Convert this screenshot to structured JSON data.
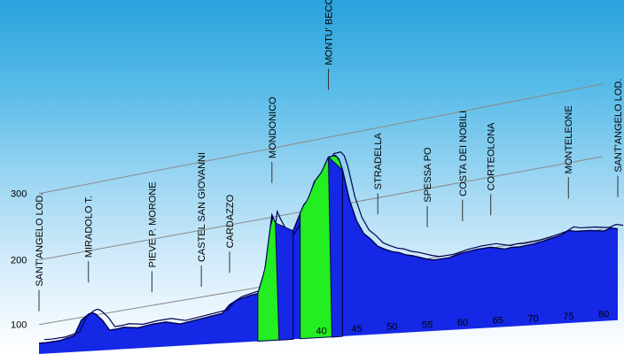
{
  "colors": {
    "profile_fill": "#1428e6",
    "profile_stroke": "#000050",
    "climb_fill": "#22ee22",
    "grid_line": "#8a8a8a",
    "marker_line": "#333333"
  },
  "chart_data": {
    "type": "area",
    "title": "",
    "xlabel": "",
    "ylabel": "",
    "ylim": [
      0,
      330
    ],
    "y_ticks": [
      100,
      200,
      300
    ],
    "x_ticks": [
      40,
      45,
      50,
      55,
      60,
      65,
      70,
      75,
      80
    ],
    "xlim": [
      0,
      82
    ],
    "grid": true,
    "profile": {
      "x": [
        0,
        1,
        3,
        5,
        6,
        7,
        7.5,
        8,
        9,
        10,
        11,
        12,
        14,
        16,
        18,
        20,
        22,
        24,
        26,
        27,
        28,
        30,
        31,
        32,
        33,
        33.5,
        34,
        35,
        36,
        37,
        37.5,
        38,
        38.5,
        39,
        40,
        41,
        42,
        42.5,
        43,
        44,
        45,
        46,
        47,
        48,
        49,
        50,
        51,
        52,
        53,
        54,
        55,
        56,
        58,
        60,
        61,
        62,
        64,
        66,
        67,
        68,
        70,
        72,
        74,
        75,
        76,
        78,
        80,
        81,
        82
      ],
      "y": [
        72,
        72,
        74,
        80,
        102,
        110,
        112,
        110,
        100,
        85,
        86,
        88,
        86,
        90,
        92,
        88,
        92,
        96,
        100,
        112,
        118,
        124,
        126,
        160,
        240,
        228,
        218,
        200,
        215,
        240,
        252,
        258,
        270,
        285,
        298,
        320,
        322,
        316,
        300,
        255,
        224,
        205,
        196,
        185,
        180,
        176,
        174,
        170,
        168,
        165,
        162,
        160,
        162,
        168,
        170,
        172,
        174,
        170,
        172,
        172,
        175,
        180,
        186,
        192,
        190,
        190,
        188,
        192,
        190
      ]
    },
    "climbs": [
      {
        "x_start": 31,
        "x_peak": 33.5,
        "x_end": 36
      },
      {
        "x_start": 37,
        "x_peak": 41,
        "x_end": 43
      }
    ],
    "landmarks": [
      {
        "name": "SANT'ANGELO LOD.",
        "x": 0
      },
      {
        "name": "MIRADOLO T.",
        "x": 7
      },
      {
        "name": "PIEVE P. MORONE",
        "x": 16
      },
      {
        "name": "CASTEL SAN GIOVANNI",
        "x": 23
      },
      {
        "name": "CARDAZZO",
        "x": 27
      },
      {
        "name": "MONDONICO",
        "x": 33
      },
      {
        "name": "MONTU' BECCARIA (R",
        "x": 41
      },
      {
        "name": "STRADELLA",
        "x": 48
      },
      {
        "name": "SPESSA PO",
        "x": 55
      },
      {
        "name": "COSTA DEI NOBILI",
        "x": 60
      },
      {
        "name": "CORTEOLONA",
        "x": 64
      },
      {
        "name": "MONTELEONE",
        "x": 75
      },
      {
        "name": "SANT'ANGELO LOD.",
        "x": 82
      }
    ]
  }
}
